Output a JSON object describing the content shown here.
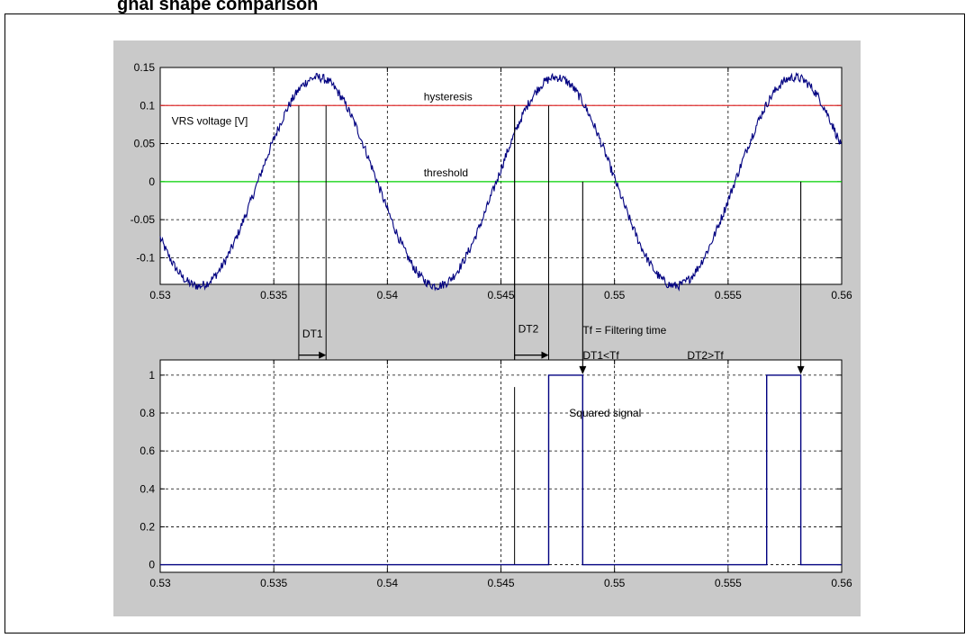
{
  "page": {
    "heading": "gnal shape comparison"
  },
  "chart_data": [
    {
      "id": "upper",
      "type": "line",
      "x": {
        "lim": [
          0.53,
          0.56
        ],
        "ticks": [
          "0.53",
          "0.535",
          "0.54",
          "0.545",
          "0.55",
          "0.555",
          "0.56"
        ],
        "tick_values": [
          0.53,
          0.535,
          0.54,
          0.545,
          0.55,
          0.555,
          0.56
        ]
      },
      "y": {
        "lim": [
          -0.135,
          0.15
        ],
        "ticks": [
          "0.15",
          "0.1",
          "0.05",
          "0",
          "-0.05",
          "-0.1"
        ],
        "tick_values": [
          0.15,
          0.1,
          0.05,
          0,
          -0.05,
          -0.1
        ]
      },
      "grid": true,
      "signal": {
        "amplitude": 0.137,
        "period": 0.0105,
        "rising_zero": 0.5343,
        "noise": 0.006,
        "color": "#000080",
        "x_range": [
          0.53,
          0.56
        ]
      },
      "hlines": [
        {
          "y": 0.1,
          "color": "#e03030",
          "label": "hysteresis",
          "label_x": 0.5416
        },
        {
          "y": 0.0,
          "color": "#00d000",
          "label": "threshold",
          "label_x": 0.5416
        }
      ],
      "annotations": [
        {
          "text": "VRS voltage [V]",
          "x": 0.5305,
          "y": 0.075
        },
        {
          "text": "Tf = Filtering time",
          "x": 0.5486,
          "y": -0.2
        },
        {
          "text": "DT1<Tf",
          "x": 0.5486,
          "y": -0.233
        },
        {
          "text": "DT2>Tf",
          "x": 0.5532,
          "y": -0.233
        }
      ],
      "markers": [
        {
          "label": "DT1",
          "x1": 0.5361,
          "x2": 0.5373,
          "line_bottom": -0.245,
          "arrow_y": -0.228,
          "label_y": -0.205
        },
        {
          "label": "DT2",
          "x1": 0.5456,
          "x2": 0.5471,
          "line_bottom": -0.245,
          "arrow_y": -0.228,
          "label_y": -0.198
        },
        {
          "label": "Tf",
          "x1": 0.5456,
          "x2": 0.5472,
          "line_bottom": -0.27,
          "arrow_y": -0.255,
          "label_y": -0.245
        }
      ]
    },
    {
      "id": "lower",
      "type": "line",
      "x": {
        "lim": [
          0.53,
          0.56
        ],
        "ticks": [
          "0.53",
          "0.535",
          "0.54",
          "0.545",
          "0.55",
          "0.555",
          "0.56"
        ],
        "tick_values": [
          0.53,
          0.535,
          0.54,
          0.545,
          0.55,
          0.555,
          0.56
        ]
      },
      "y": {
        "lim": [
          -0.04,
          1.08
        ],
        "ticks": [
          "1",
          "0.8",
          "0.6",
          "0.4",
          "0.2",
          "0"
        ],
        "tick_values": [
          1,
          0.8,
          0.6,
          0.4,
          0.2,
          0
        ]
      },
      "grid": true,
      "series": [
        {
          "color": "#000080",
          "x": [
            0.53,
            0.5471,
            0.5471,
            0.5486,
            0.5486,
            0.5567,
            0.5567,
            0.5582,
            0.5582,
            0.56
          ],
          "y": [
            0,
            0,
            1,
            1,
            0,
            0,
            1,
            1,
            0,
            0
          ]
        }
      ],
      "annotations": [
        {
          "text": "Squared signal",
          "x": 0.548,
          "y": 0.78
        }
      ],
      "vertical_links": [
        {
          "x": 0.5486,
          "from_upper_y": 0.0
        },
        {
          "x": 0.5582,
          "from_upper_y": 0.0
        }
      ]
    }
  ]
}
